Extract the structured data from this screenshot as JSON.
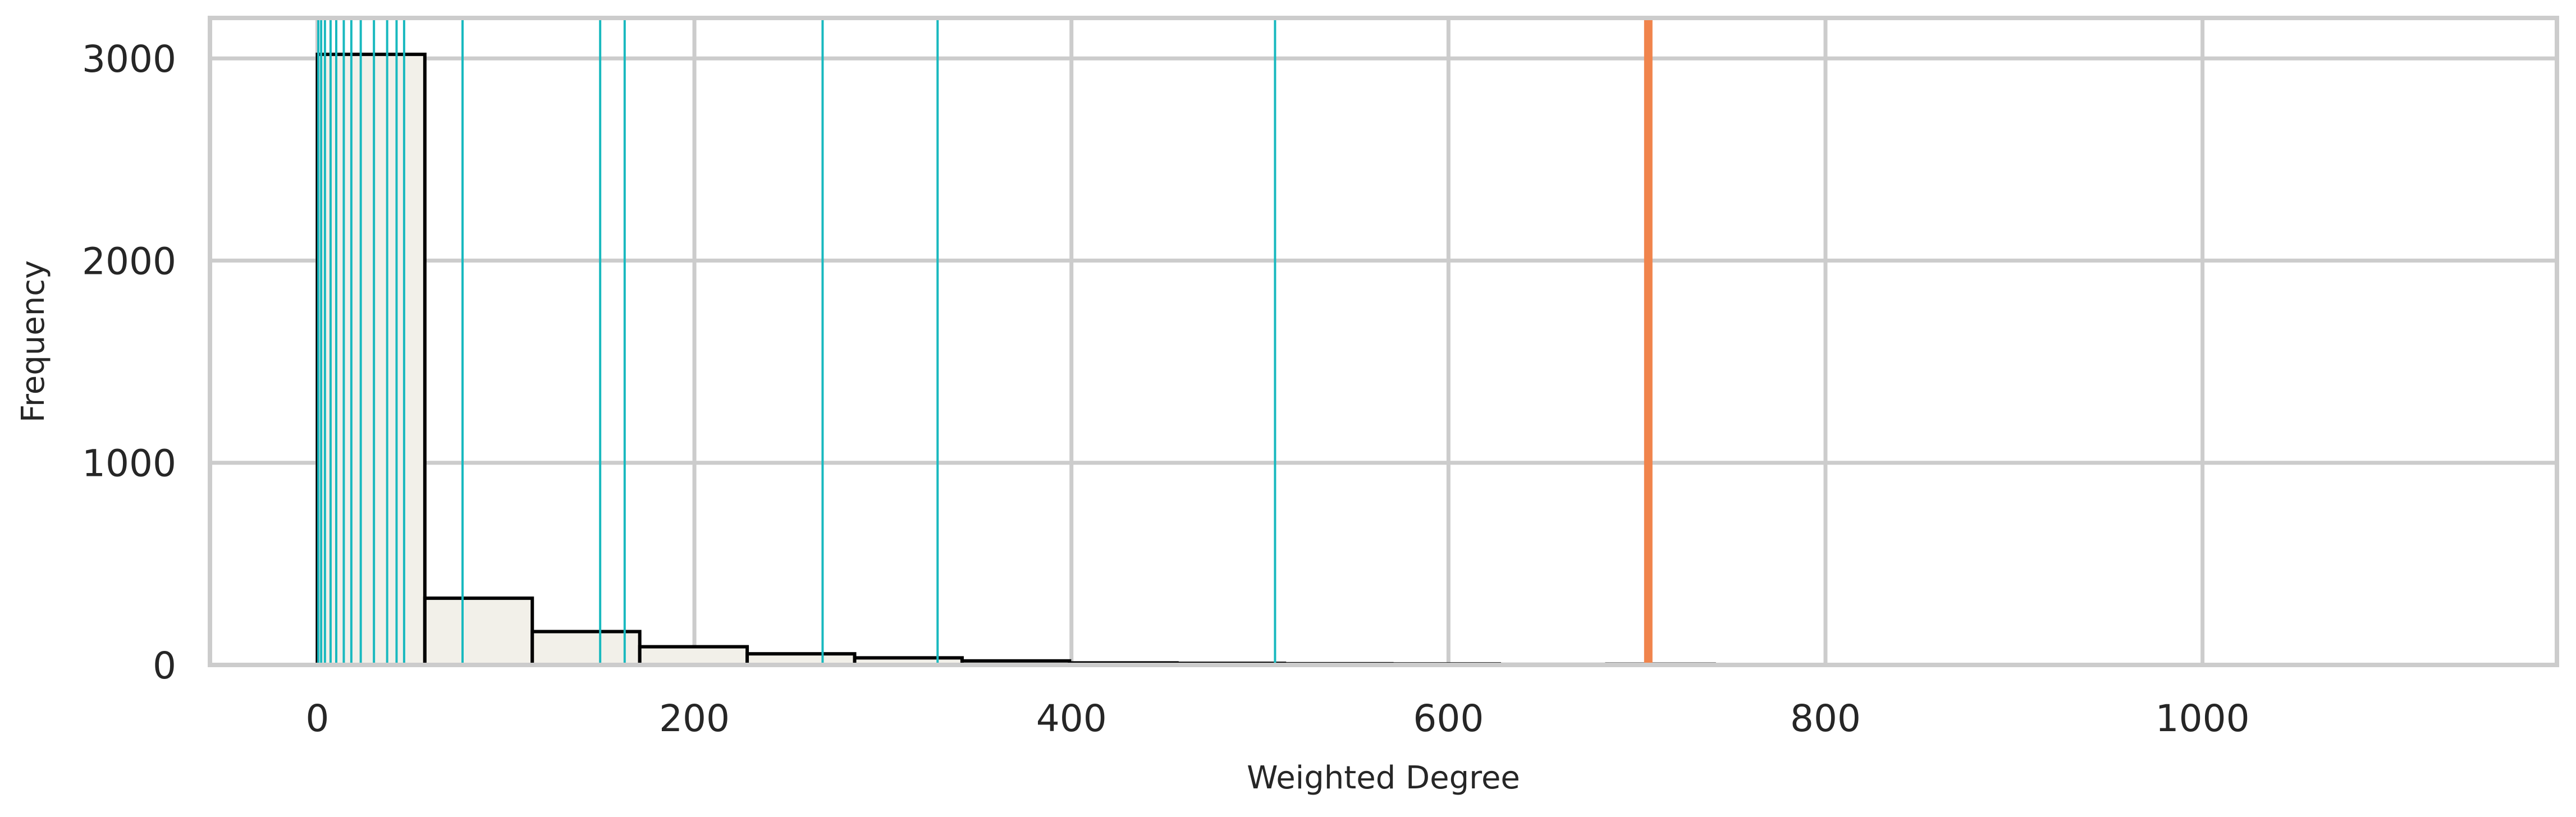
{
  "chart_data": {
    "type": "bar",
    "subtype": "histogram",
    "title": "",
    "xlabel": "Weighted Degree",
    "ylabel": "Frequency",
    "xlim": [
      -57,
      1188
    ],
    "ylim": [
      0,
      3200
    ],
    "grid": true,
    "legend": "none",
    "x_ticks": [
      0,
      200,
      400,
      600,
      800,
      1000
    ],
    "y_ticks": [
      0,
      1000,
      2000,
      3000
    ],
    "bins": [
      {
        "x0": 0,
        "x1": 57,
        "count": 3020
      },
      {
        "x0": 57,
        "x1": 114,
        "count": 330
      },
      {
        "x0": 114,
        "x1": 171,
        "count": 165
      },
      {
        "x0": 171,
        "x1": 228,
        "count": 90
      },
      {
        "x0": 228,
        "x1": 285,
        "count": 55
      },
      {
        "x0": 285,
        "x1": 342,
        "count": 35
      },
      {
        "x0": 342,
        "x1": 399,
        "count": 20
      },
      {
        "x0": 399,
        "x1": 456,
        "count": 10
      },
      {
        "x0": 456,
        "x1": 513,
        "count": 8
      },
      {
        "x0": 513,
        "x1": 570,
        "count": 6
      },
      {
        "x0": 570,
        "x1": 627,
        "count": 5
      },
      {
        "x0": 627,
        "x1": 684,
        "count": 3
      },
      {
        "x0": 684,
        "x1": 741,
        "count": 4
      },
      {
        "x0": 741,
        "x1": 798,
        "count": 2
      },
      {
        "x0": 798,
        "x1": 855,
        "count": 2
      },
      {
        "x0": 855,
        "x1": 912,
        "count": 1
      },
      {
        "x0": 912,
        "x1": 969,
        "count": 2
      },
      {
        "x0": 969,
        "x1": 1026,
        "count": 1
      },
      {
        "x0": 1026,
        "x1": 1083,
        "count": 1
      },
      {
        "x0": 1083,
        "x1": 1140,
        "count": 2
      }
    ],
    "reference_lines": [
      0.5,
      2,
      4,
      7,
      10,
      14,
      18,
      23,
      30,
      37,
      42,
      46,
      77,
      150,
      163,
      268,
      329,
      508
    ],
    "highlight_line": 706,
    "colors": {
      "bar_fill": "#f2f0e9",
      "bar_edge": "#000000",
      "reference_line": "#19b9bf",
      "highlight_line": "#f0844c",
      "grid": "#cccccc",
      "frame": "#cccccc"
    }
  }
}
